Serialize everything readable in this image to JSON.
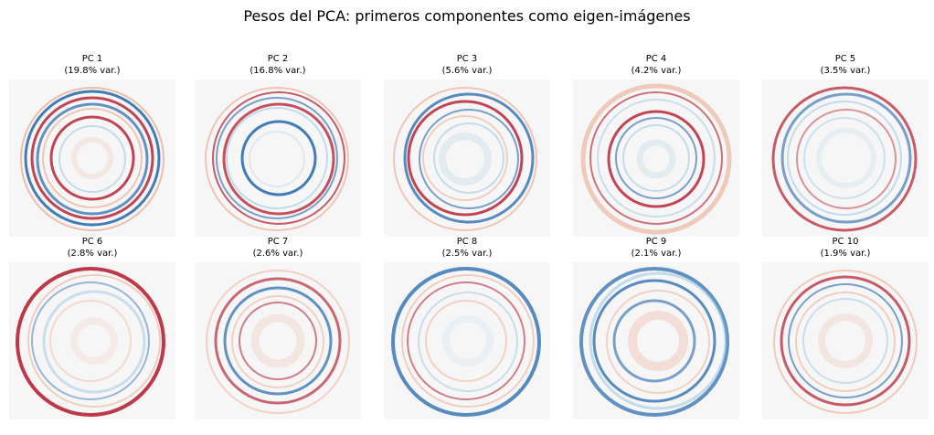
{
  "figure": {
    "title": "Pesos del PCA: primeros componentes como eigen-imágenes"
  },
  "colormap": {
    "name": "RdBu_r",
    "negative": "#2166ac",
    "neutral": "#f7f7f7",
    "positive": "#b2182b"
  },
  "chart_data": {
    "type": "heatmap",
    "title": "Pesos del PCA: primeros componentes como eigen-imágenes",
    "grid": false,
    "axes": "off",
    "panels": [
      {
        "label": "PC 1",
        "variance": "(19.8% var.)",
        "explained_variance_pct": 19.8
      },
      {
        "label": "PC 2",
        "variance": "(16.8% var.)",
        "explained_variance_pct": 16.8
      },
      {
        "label": "PC 3",
        "variance": "(5.6% var.)",
        "explained_variance_pct": 5.6
      },
      {
        "label": "PC 4",
        "variance": "(4.2% var.)",
        "explained_variance_pct": 4.2
      },
      {
        "label": "PC 5",
        "variance": "(3.5% var.)",
        "explained_variance_pct": 3.5
      },
      {
        "label": "PC 6",
        "variance": "(2.8% var.)",
        "explained_variance_pct": 2.8
      },
      {
        "label": "PC 7",
        "variance": "(2.6% var.)",
        "explained_variance_pct": 2.6
      },
      {
        "label": "PC 8",
        "variance": "(2.5% var.)",
        "explained_variance_pct": 2.5
      },
      {
        "label": "PC 9",
        "variance": "(2.1% var.)",
        "explained_variance_pct": 2.1
      },
      {
        "label": "PC 10",
        "variance": "(1.9% var.)",
        "explained_variance_pct": 1.9
      }
    ]
  }
}
